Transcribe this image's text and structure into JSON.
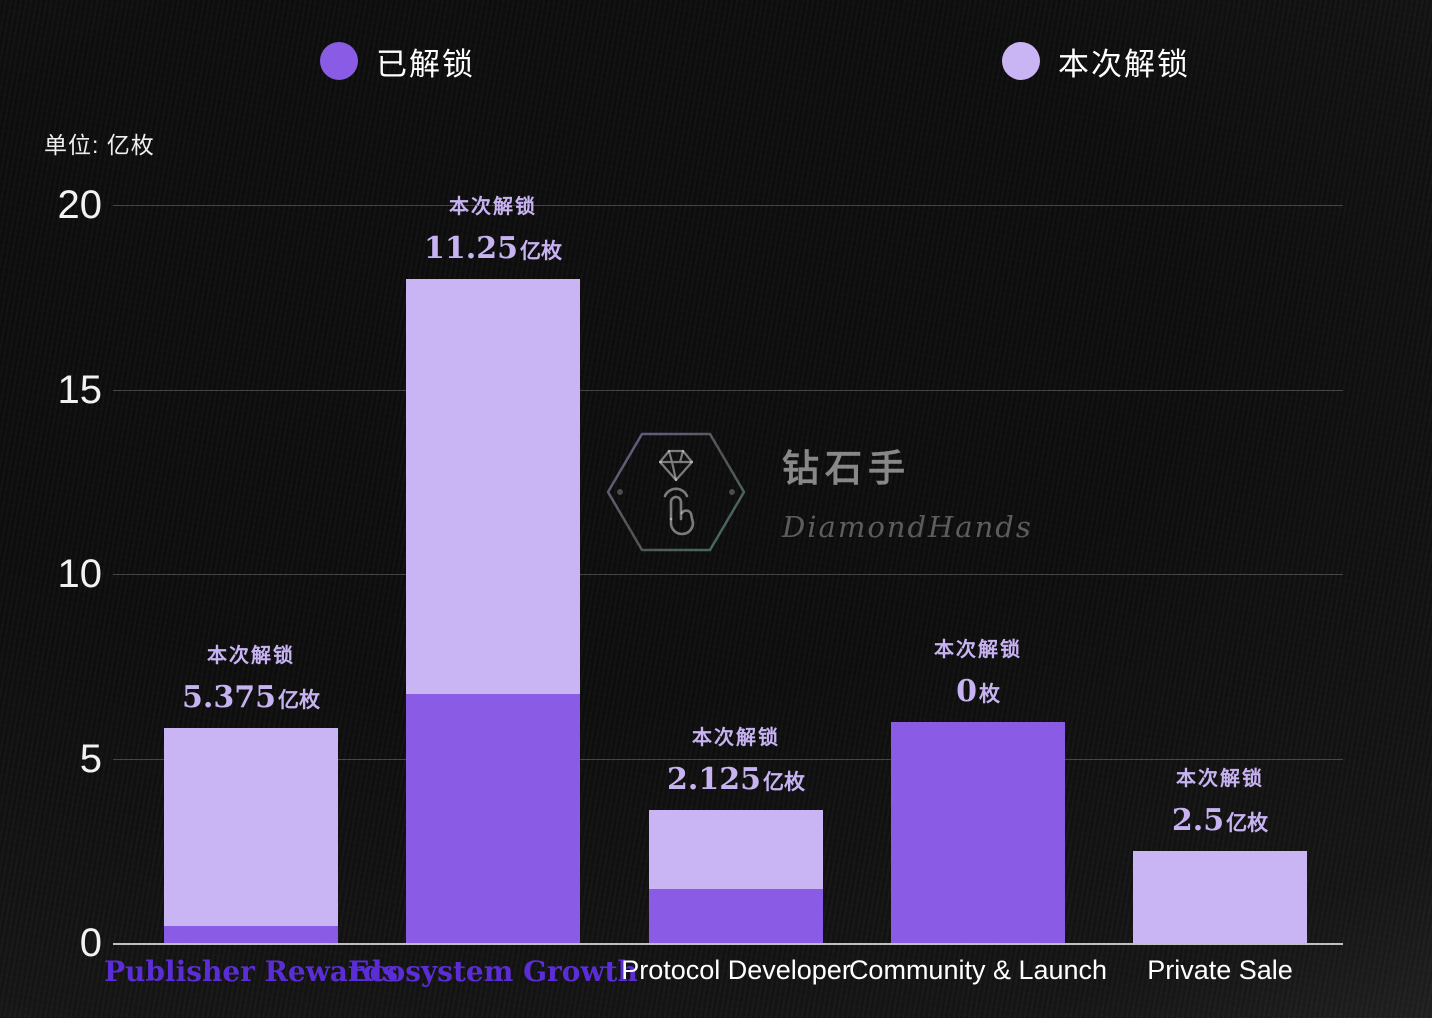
{
  "legend": {
    "items": [
      {
        "label": "已解锁",
        "color": "#8a5ce6"
      },
      {
        "label": "本次解锁",
        "color": "#c9b4f4"
      }
    ]
  },
  "unit_label": "单位: 亿枚",
  "watermark": {
    "name_cn": "钻石手",
    "name_en": "DiamondHands"
  },
  "chart_data": {
    "type": "bar",
    "stacked": true,
    "unit": "亿枚",
    "categories": [
      "Publisher Rewards",
      "Ecosystem Growth",
      "Protocol Developer",
      "Community & Launch",
      "Private Sale"
    ],
    "category_label_colors": [
      "#5b2dd6",
      "#5b2dd6",
      "#ffffff",
      "#ffffff",
      "#ffffff"
    ],
    "series": [
      {
        "name": "已解锁",
        "color": "#8a5ce6",
        "values": [
          0.45,
          6.75,
          1.475,
          6.0,
          0
        ]
      },
      {
        "name": "本次解锁",
        "color": "#c9b4f4",
        "values": [
          5.375,
          11.25,
          2.125,
          0,
          2.5
        ]
      }
    ],
    "annotations": [
      {
        "title": "本次解锁",
        "value": "5.375",
        "unit": "亿枚"
      },
      {
        "title": "本次解锁",
        "value": "11.25",
        "unit": "亿枚"
      },
      {
        "title": "本次解锁",
        "value": "2.125",
        "unit": "亿枚"
      },
      {
        "title": "本次解锁",
        "value": "0",
        "unit": "枚"
      },
      {
        "title": "本次解锁",
        "value": "2.5",
        "unit": "亿枚"
      }
    ],
    "ylim": [
      0,
      20
    ],
    "yticks": [
      0,
      5,
      10,
      15,
      20
    ],
    "grid": true,
    "legend_position": "top"
  },
  "colors": {
    "annotation_text": "#c8b3f2",
    "axis_text": "#f2f2f2",
    "category_purple": "#5b2dd6"
  }
}
